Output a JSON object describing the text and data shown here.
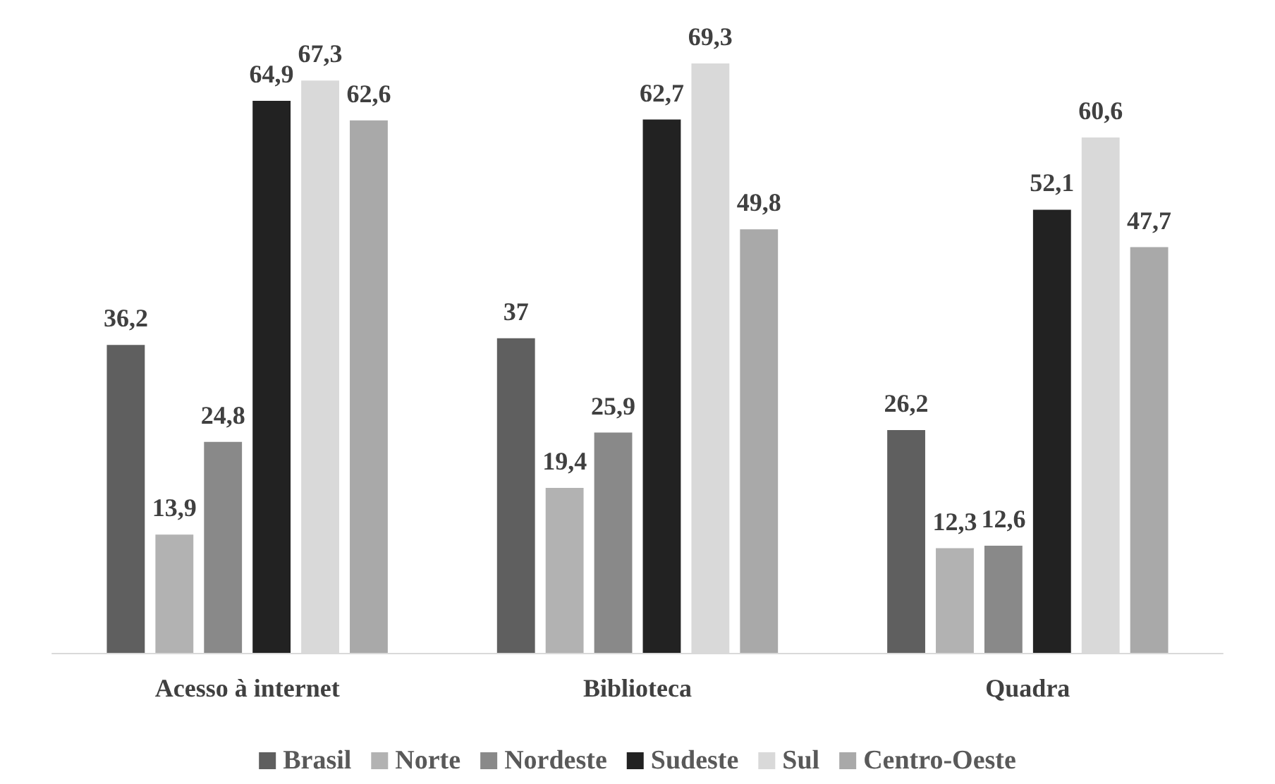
{
  "chart_data": {
    "type": "bar",
    "categories": [
      "Acesso à internet",
      "Biblioteca",
      "Quadra"
    ],
    "series": [
      {
        "name": "Brasil",
        "color": "#5f5f5f",
        "values": [
          36.2,
          37,
          26.2
        ],
        "value_labels": [
          "36,2",
          "37",
          "26,2"
        ]
      },
      {
        "name": "Norte",
        "color": "#b2b2b2",
        "values": [
          13.9,
          19.4,
          12.3
        ],
        "value_labels": [
          "13,9",
          "19,4",
          "12,3"
        ]
      },
      {
        "name": "Nordeste",
        "color": "#898989",
        "values": [
          24.8,
          25.9,
          12.6
        ],
        "value_labels": [
          "24,8",
          "25,9",
          "12,6"
        ]
      },
      {
        "name": "Sudeste",
        "color": "#222222",
        "values": [
          64.9,
          62.7,
          52.1
        ],
        "value_labels": [
          "64,9",
          "62,7",
          "52,1"
        ]
      },
      {
        "name": "Sul",
        "color": "#d9d9d9",
        "values": [
          67.3,
          69.3,
          60.6
        ],
        "value_labels": [
          "67,3",
          "69,3",
          "60,6"
        ]
      },
      {
        "name": "Centro-Oeste",
        "color": "#a9a9a9",
        "values": [
          62.6,
          49.8,
          47.7
        ],
        "value_labels": [
          "62,6",
          "49,8",
          "47,7"
        ]
      }
    ],
    "grid": false,
    "legend": "bottom"
  }
}
